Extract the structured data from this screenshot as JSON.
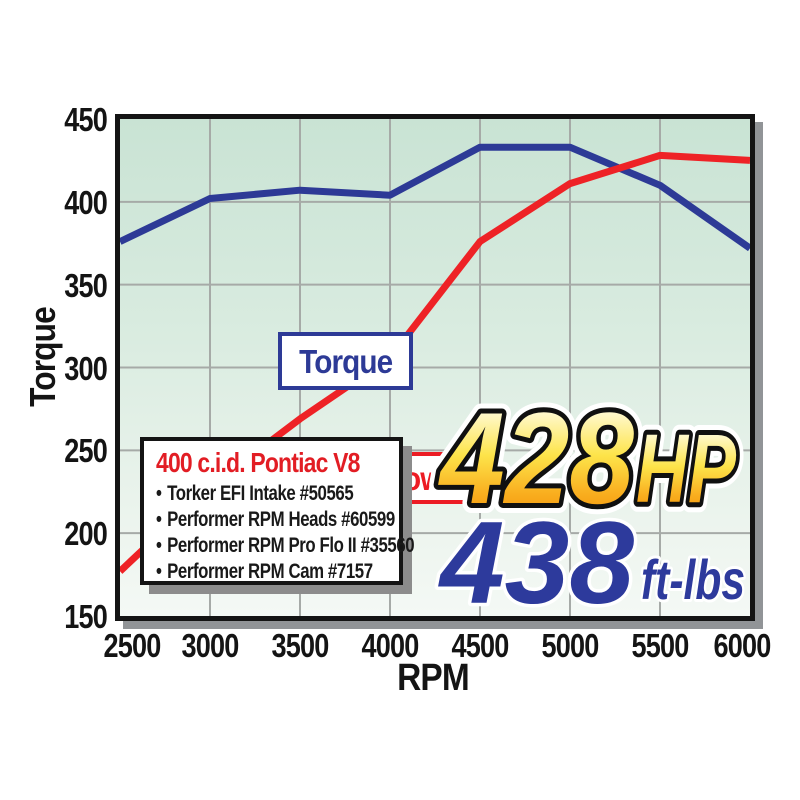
{
  "chart_data": {
    "type": "line",
    "x": [
      2500,
      3000,
      3500,
      4000,
      4500,
      5000,
      5500,
      6000
    ],
    "x_ticks": [
      "2500",
      "3000",
      "3500",
      "4000",
      "4500",
      "5000",
      "5500",
      "6000"
    ],
    "y_ticks": [
      "150",
      "200",
      "250",
      "300",
      "350",
      "400",
      "450"
    ],
    "y_tick_values": [
      150,
      200,
      250,
      300,
      350,
      400,
      450
    ],
    "xlabel": "RPM",
    "ylabel": "Torque",
    "xlim": [
      2500,
      6000
    ],
    "ylim": [
      150,
      450
    ],
    "grid": true,
    "legend_position": "on-chart-boxes",
    "series": [
      {
        "name": "Torque",
        "color": "#2d3a96",
        "values": [
          376,
          402,
          407,
          404,
          433,
          433,
          410,
          372
        ]
      },
      {
        "name": "Horsepower",
        "color": "#ee2226",
        "values": [
          177,
          228,
          269,
          306,
          376,
          411,
          428,
          425
        ]
      }
    ]
  },
  "labels": {
    "torque_label": "Torque",
    "horsepower_label": "Horsepower"
  },
  "info_box": {
    "title": "400 c.i.d. Pontiac V8",
    "bullet_char": "•",
    "items": [
      "Torker EFI Intake #50565",
      "Performer RPM Heads #60599",
      "Performer RPM Pro Flo II #35560",
      "Performer RPM Cam #7157"
    ]
  },
  "results": {
    "hp_value": "428",
    "hp_unit": "HP",
    "torque_value": "438",
    "torque_unit": "ft-lbs"
  },
  "colors": {
    "torque_line": "#2d3a96",
    "horsepower_line": "#ee2226",
    "grid": "#a6aaa7",
    "plot_border": "#141414",
    "plot_shadow": "#919497",
    "plot_bg_top": "#c9e3d4",
    "plot_bg_bottom": "#f4f9f5",
    "gold_top": "#ffffff",
    "gold_mid": "#fde44a",
    "gold_bottom": "#ef8c03",
    "result_torque_blue": "#2d3a9c"
  }
}
